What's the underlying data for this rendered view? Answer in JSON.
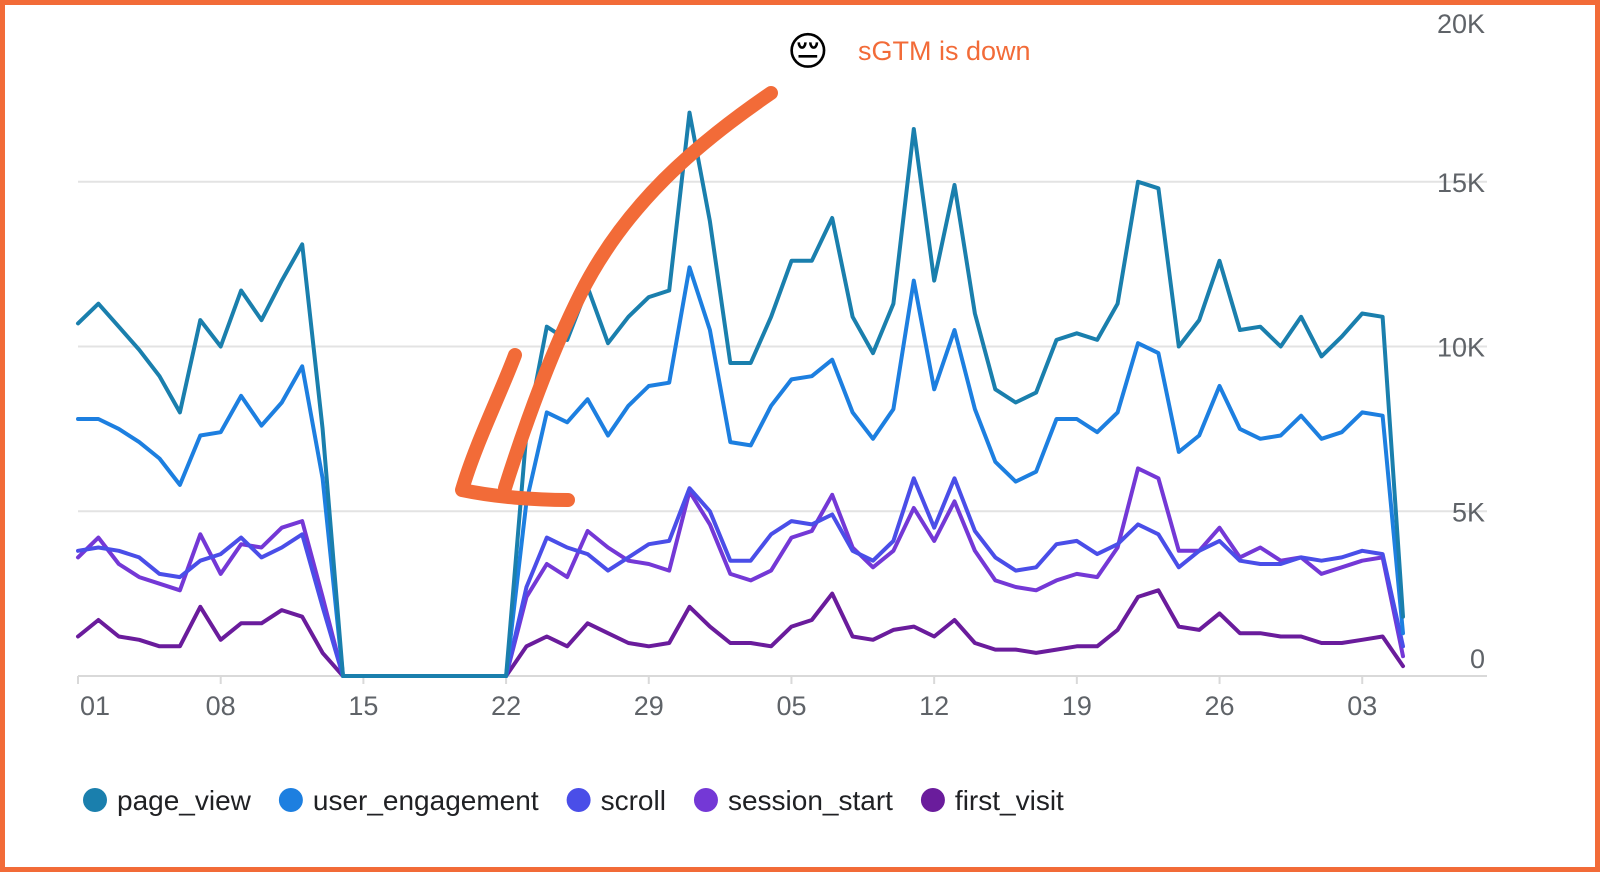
{
  "chart_data": {
    "type": "line",
    "x_ticks": [
      "01",
      "08",
      "15",
      "22",
      "29",
      "05",
      "12",
      "19",
      "26",
      "03"
    ],
    "ylim": [
      0,
      20000
    ],
    "y_ticks": [
      {
        "value": 0,
        "label": "0"
      },
      {
        "value": 5000,
        "label": "5K"
      },
      {
        "value": 10000,
        "label": "10K"
      },
      {
        "value": 15000,
        "label": "15K"
      },
      {
        "value": 20000,
        "label": "20K"
      }
    ],
    "y_axis_position": "right",
    "grid": true,
    "legend_position": "bottom",
    "annotation": {
      "emoji": "😔",
      "text": "sGTM is down",
      "color": "#f26b38"
    },
    "series": [
      {
        "name": "page_view",
        "color": "#1a7fad",
        "values": [
          10700,
          11300,
          10600,
          9900,
          9100,
          8000,
          10800,
          10000,
          11700,
          10800,
          12000,
          13100,
          7500,
          0,
          0,
          0,
          0,
          0,
          0,
          0,
          0,
          0,
          7400,
          10600,
          10200,
          11800,
          10100,
          10900,
          11500,
          11700,
          17100,
          13800,
          9500,
          9500,
          10900,
          12600,
          12600,
          13900,
          10900,
          9800,
          11300,
          16600,
          12000,
          14900,
          11000,
          8700,
          8300,
          8600,
          10200,
          10400,
          10200,
          11300,
          15000,
          14800,
          10000,
          10800,
          12600,
          10500,
          10600,
          10000,
          10900,
          9700,
          10300,
          11000,
          10900,
          1800
        ]
      },
      {
        "name": "user_engagement",
        "color": "#1d7fe0",
        "values": [
          7800,
          7800,
          7500,
          7100,
          6600,
          5800,
          7300,
          7400,
          8500,
          7600,
          8300,
          9400,
          6000,
          0,
          0,
          0,
          0,
          0,
          0,
          0,
          0,
          0,
          5300,
          8000,
          7700,
          8400,
          7300,
          8200,
          8800,
          8900,
          12400,
          10500,
          7100,
          7000,
          8200,
          9000,
          9100,
          9600,
          8000,
          7200,
          8100,
          12000,
          8700,
          10500,
          8100,
          6500,
          5900,
          6200,
          7800,
          7800,
          7400,
          8000,
          10100,
          9800,
          6800,
          7300,
          8800,
          7500,
          7200,
          7300,
          7900,
          7200,
          7400,
          8000,
          7900,
          1300
        ]
      },
      {
        "name": "scroll",
        "color": "#4a4ee8",
        "values": [
          3800,
          3900,
          3800,
          3600,
          3100,
          3000,
          3500,
          3700,
          4200,
          3600,
          3900,
          4300,
          2100,
          0,
          0,
          0,
          0,
          0,
          0,
          0,
          0,
          0,
          2700,
          4200,
          3900,
          3700,
          3200,
          3600,
          4000,
          4100,
          5700,
          5000,
          3500,
          3500,
          4300,
          4700,
          4600,
          4900,
          3800,
          3500,
          4100,
          6000,
          4500,
          6000,
          4400,
          3600,
          3200,
          3300,
          4000,
          4100,
          3700,
          4000,
          4600,
          4300,
          3300,
          3800,
          4100,
          3500,
          3400,
          3400,
          3600,
          3500,
          3600,
          3800,
          3700,
          900
        ]
      },
      {
        "name": "session_start",
        "color": "#7438d6",
        "values": [
          3600,
          4200,
          3400,
          3000,
          2800,
          2600,
          4300,
          3100,
          4000,
          3900,
          4500,
          4700,
          2400,
          0,
          0,
          0,
          0,
          0,
          0,
          0,
          0,
          0,
          2400,
          3400,
          3000,
          4400,
          3900,
          3500,
          3400,
          3200,
          5600,
          4600,
          3100,
          2900,
          3200,
          4200,
          4400,
          5500,
          3900,
          3300,
          3800,
          5100,
          4100,
          5300,
          3800,
          2900,
          2700,
          2600,
          2900,
          3100,
          3000,
          3900,
          6300,
          6000,
          3800,
          3800,
          4500,
          3600,
          3900,
          3500,
          3600,
          3100,
          3300,
          3500,
          3600,
          600
        ]
      },
      {
        "name": "first_visit",
        "color": "#6a1c9c",
        "values": [
          1200,
          1700,
          1200,
          1100,
          900,
          900,
          2100,
          1100,
          1600,
          1600,
          2000,
          1800,
          700,
          0,
          0,
          0,
          0,
          0,
          0,
          0,
          0,
          0,
          900,
          1200,
          900,
          1600,
          1300,
          1000,
          900,
          1000,
          2100,
          1500,
          1000,
          1000,
          900,
          1500,
          1700,
          2500,
          1200,
          1100,
          1400,
          1500,
          1200,
          1700,
          1000,
          800,
          800,
          700,
          800,
          900,
          900,
          1400,
          2400,
          2600,
          1500,
          1400,
          1900,
          1300,
          1300,
          1200,
          1200,
          1000,
          1000,
          1100,
          1200,
          300
        ]
      }
    ]
  }
}
